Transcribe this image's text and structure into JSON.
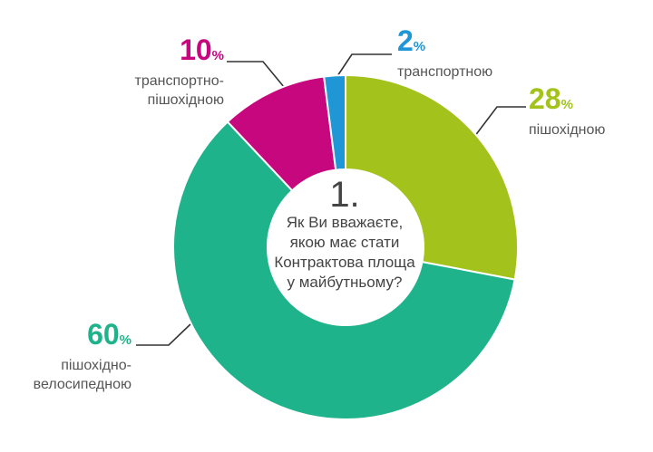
{
  "chart_data": {
    "type": "donut",
    "question_number": "1.",
    "question": "Як Ви вважаєте, якою має стати Контрактова площа у майбутньому?",
    "unit": "%",
    "categories": [
      "пішохідною",
      "пішохідно-велосипедною",
      "транспортно-пішохідною",
      "транспортною"
    ],
    "values": [
      28,
      60,
      10,
      2
    ],
    "colors": [
      "#a3c21b",
      "#1fb38b",
      "#c6077d",
      "#1f96d6"
    ]
  }
}
